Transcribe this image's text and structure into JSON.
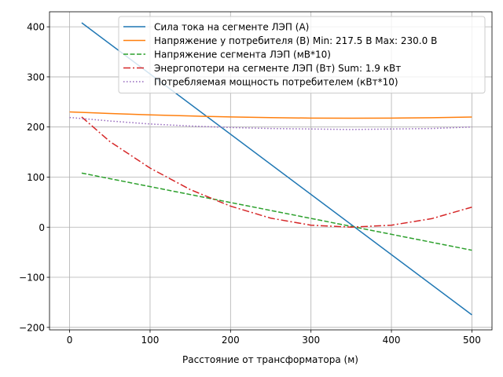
{
  "chart_data": {
    "type": "line",
    "title": "",
    "xlabel": "Расстояние от трансформатора (м)",
    "ylabel": "",
    "xlim": [
      -25,
      525
    ],
    "ylim": [
      -205,
      430
    ],
    "xticks": [
      0,
      100,
      200,
      300,
      400,
      500
    ],
    "yticks": [
      -200,
      -100,
      0,
      100,
      200,
      300,
      400
    ],
    "grid": true,
    "legend_position": "top-right",
    "series": [
      {
        "name": "Сила тока на сегменте ЛЭП (А)",
        "color": "#1f77b4",
        "dash": "solid",
        "x": [
          15,
          500
        ],
        "y": [
          408,
          -175
        ]
      },
      {
        "name": "Напряжение у потребителя (В) Min: 217.5 В Max: 230.0 В",
        "color": "#ff7f0e",
        "dash": "solid",
        "x": [
          0,
          50,
          100,
          150,
          200,
          250,
          300,
          350,
          400,
          450,
          500
        ],
        "y": [
          230.0,
          227.0,
          224.3,
          222.0,
          220.1,
          218.7,
          217.8,
          217.5,
          217.7,
          218.5,
          219.9
        ]
      },
      {
        "name": "Напряжение сегмента ЛЭП (мВ*10)",
        "color": "#2ca02c",
        "dash": "dashed",
        "x": [
          15,
          500
        ],
        "y": [
          108,
          -46
        ]
      },
      {
        "name": "Энергопотери на сегменте ЛЭП (Вт) Sum: 1.9 кВт",
        "color": "#d62728",
        "dash": "dashdot",
        "x": [
          15,
          50,
          100,
          150,
          200,
          250,
          300,
          350,
          400,
          450,
          500
        ],
        "y": [
          220,
          171,
          118,
          75,
          42,
          18,
          4,
          0,
          4,
          17,
          40
        ]
      },
      {
        "name": "Потребляемая мощность потребителем (кВт*10)",
        "color": "#9467bd",
        "dash": "dotted",
        "x": [
          0,
          50,
          100,
          150,
          200,
          250,
          300,
          350,
          400,
          450,
          500
        ],
        "y": [
          219,
          212,
          206,
          202,
          199,
          197,
          196,
          195,
          196,
          197,
          200
        ]
      }
    ]
  }
}
